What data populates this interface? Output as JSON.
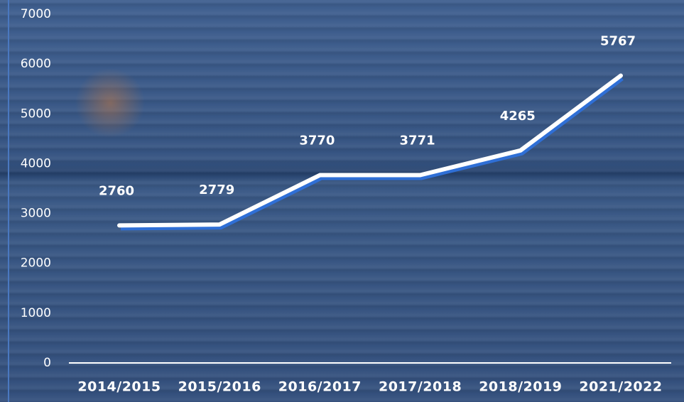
{
  "chart_data": {
    "type": "line",
    "categories": [
      "2014/2015",
      "2015/2016",
      "2016/2017",
      "2017/2018",
      "2018/2019",
      "2021/2022"
    ],
    "series": [
      {
        "color": "#ffffff",
        "values": [
          2760,
          2779,
          3770,
          3771,
          4265,
          5767
        ]
      }
    ],
    "ylim": [
      0,
      7000
    ],
    "yticks": [
      0,
      1000,
      2000,
      3000,
      4000,
      5000,
      6000,
      7000
    ]
  }
}
